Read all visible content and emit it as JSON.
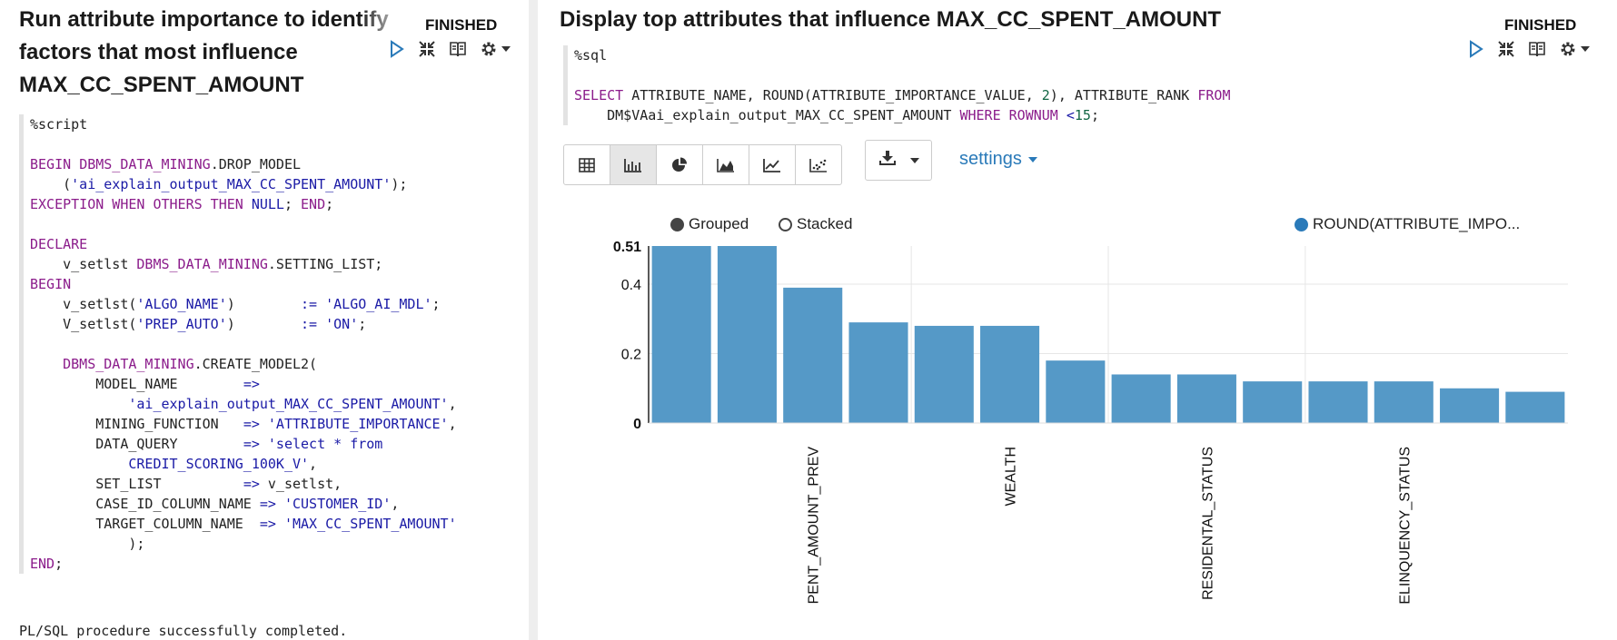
{
  "left_paragraph": {
    "title_lines": [
      "Run attribute importance to identify",
      "factors that most influence",
      "MAX_CC_SPENT_AMOUNT"
    ],
    "status": "FINISHED",
    "code_lines": [
      [
        {
          "t": "%script",
          "c": ""
        }
      ],
      [],
      [
        {
          "t": "BEGIN ",
          "c": "kw"
        },
        {
          "t": "DBMS_DATA_MINING",
          "c": "kw"
        },
        {
          "t": ".DROP_MODEL",
          "c": ""
        }
      ],
      [
        {
          "t": "    (",
          "c": ""
        },
        {
          "t": "'ai_explain_output_MAX_CC_SPENT_AMOUNT'",
          "c": "str"
        },
        {
          "t": ");",
          "c": ""
        }
      ],
      [
        {
          "t": "EXCEPTION WHEN OTHERS THEN ",
          "c": "kw"
        },
        {
          "t": "NULL",
          "c": "str"
        },
        {
          "t": "; ",
          "c": ""
        },
        {
          "t": "END",
          "c": "kw"
        },
        {
          "t": ";",
          "c": ""
        }
      ],
      [],
      [
        {
          "t": "DECLARE",
          "c": "kw"
        }
      ],
      [
        {
          "t": "    v_setlst ",
          "c": ""
        },
        {
          "t": "DBMS_DATA_MINING",
          "c": "kw"
        },
        {
          "t": ".SETTING_LIST;",
          "c": ""
        }
      ],
      [
        {
          "t": "BEGIN",
          "c": "kw"
        }
      ],
      [
        {
          "t": "    v_setlst(",
          "c": ""
        },
        {
          "t": "'ALGO_NAME'",
          "c": "str"
        },
        {
          "t": ")        ",
          "c": ""
        },
        {
          "t": ":=",
          "c": "op"
        },
        {
          "t": " ",
          "c": ""
        },
        {
          "t": "'ALGO_AI_MDL'",
          "c": "str"
        },
        {
          "t": ";",
          "c": ""
        }
      ],
      [
        {
          "t": "    V_setlst(",
          "c": ""
        },
        {
          "t": "'PREP_AUTO'",
          "c": "str"
        },
        {
          "t": ")        ",
          "c": ""
        },
        {
          "t": ":=",
          "c": "op"
        },
        {
          "t": " ",
          "c": ""
        },
        {
          "t": "'ON'",
          "c": "str"
        },
        {
          "t": ";",
          "c": ""
        }
      ],
      [],
      [
        {
          "t": "    ",
          "c": ""
        },
        {
          "t": "DBMS_DATA_MINING",
          "c": "kw"
        },
        {
          "t": ".CREATE_MODEL2(",
          "c": ""
        }
      ],
      [
        {
          "t": "        MODEL_NAME        ",
          "c": ""
        },
        {
          "t": "=>",
          "c": "op"
        }
      ],
      [
        {
          "t": "            ",
          "c": ""
        },
        {
          "t": "'ai_explain_output_MAX_CC_SPENT_AMOUNT'",
          "c": "str"
        },
        {
          "t": ",",
          "c": ""
        }
      ],
      [
        {
          "t": "        MINING_FUNCTION   ",
          "c": ""
        },
        {
          "t": "=>",
          "c": "op"
        },
        {
          "t": " ",
          "c": ""
        },
        {
          "t": "'ATTRIBUTE_IMPORTANCE'",
          "c": "str"
        },
        {
          "t": ",",
          "c": ""
        }
      ],
      [
        {
          "t": "        DATA_QUERY        ",
          "c": ""
        },
        {
          "t": "=>",
          "c": "op"
        },
        {
          "t": " ",
          "c": ""
        },
        {
          "t": "'select * from",
          "c": "str"
        }
      ],
      [
        {
          "t": "            CREDIT_SCORING_100K_V'",
          "c": "str"
        },
        {
          "t": ",",
          "c": ""
        }
      ],
      [
        {
          "t": "        SET_LIST          ",
          "c": ""
        },
        {
          "t": "=>",
          "c": "op"
        },
        {
          "t": " v_setlst,",
          "c": ""
        }
      ],
      [
        {
          "t": "        CASE_ID_COLUMN_NAME ",
          "c": ""
        },
        {
          "t": "=>",
          "c": "op"
        },
        {
          "t": " ",
          "c": ""
        },
        {
          "t": "'CUSTOMER_ID'",
          "c": "str"
        },
        {
          "t": ",",
          "c": ""
        }
      ],
      [
        {
          "t": "        TARGET_COLUMN_NAME  ",
          "c": ""
        },
        {
          "t": "=>",
          "c": "op"
        },
        {
          "t": " ",
          "c": ""
        },
        {
          "t": "'MAX_CC_SPENT_AMOUNT'",
          "c": "str"
        }
      ],
      [
        {
          "t": "            );",
          "c": ""
        }
      ],
      [
        {
          "t": "END",
          "c": "kw"
        },
        {
          "t": ";",
          "c": ""
        }
      ]
    ],
    "result": "PL/SQL procedure successfully completed."
  },
  "right_paragraph": {
    "title": "Display top attributes that influence MAX_CC_SPENT_AMOUNT",
    "status": "FINISHED",
    "code_lines": [
      [
        {
          "t": "%sql",
          "c": ""
        }
      ],
      [],
      [
        {
          "t": "SELECT",
          "c": "kw"
        },
        {
          "t": " ATTRIBUTE_NAME, ROUND(ATTRIBUTE_IMPORTANCE_VALUE, ",
          "c": ""
        },
        {
          "t": "2",
          "c": "num"
        },
        {
          "t": "), ATTRIBUTE_RANK ",
          "c": ""
        },
        {
          "t": "FROM",
          "c": "kw"
        }
      ],
      [
        {
          "t": "    DM$VAai_explain_output_MAX_CC_SPENT_AMOUNT ",
          "c": ""
        },
        {
          "t": "WHERE",
          "c": "kw"
        },
        {
          "t": " ",
          "c": ""
        },
        {
          "t": "ROWNUM",
          "c": "kw"
        },
        {
          "t": " ",
          "c": ""
        },
        {
          "t": "<",
          "c": "op"
        },
        {
          "t": "15",
          "c": "num"
        },
        {
          "t": ";",
          "c": ""
        }
      ]
    ],
    "settings_label": "settings",
    "legend": {
      "grouped": "Grouped",
      "stacked": "Stacked"
    }
  },
  "colors": {
    "bar": "#5599c7",
    "settings_link": "#2a7ab9",
    "keyword": "#8b1c8b",
    "string": "#1a1aa6"
  },
  "icons": [
    "run-icon",
    "shrink-icon",
    "book-icon",
    "gear-icon",
    "chevron-down-icon",
    "table-icon",
    "bar-chart-icon",
    "pie-chart-icon",
    "area-chart-icon",
    "line-chart-icon",
    "scatter-chart-icon",
    "download-icon"
  ],
  "chart_data": {
    "type": "bar",
    "series": [
      {
        "name": "ROUND(ATTRIBUTE_IMPO...",
        "values": [
          0.51,
          0.51,
          0.39,
          0.29,
          0.28,
          0.28,
          0.18,
          0.14,
          0.14,
          0.12,
          0.12,
          0.12,
          0.1,
          0.09
        ]
      }
    ],
    "categories": [
      "",
      "",
      "",
      "",
      "",
      "",
      "",
      "",
      "",
      "",
      "",
      "",
      "",
      ""
    ],
    "visible_category_labels": [
      {
        "index": 2,
        "text": "PENT_AMOUNT_PREV"
      },
      {
        "index": 5,
        "text": "WEALTH"
      },
      {
        "index": 8,
        "text": "RESIDENTAL_STATUS"
      },
      {
        "index": 11,
        "text": "ELINQUENCY_STATUS"
      }
    ],
    "yticks": [
      "0",
      "0.2",
      "0.4",
      "0.51"
    ],
    "ytick_values": [
      0,
      0.2,
      0.4,
      0.51
    ],
    "ylim": [
      0,
      0.51
    ],
    "grid": true,
    "legend_position": "top-right"
  }
}
